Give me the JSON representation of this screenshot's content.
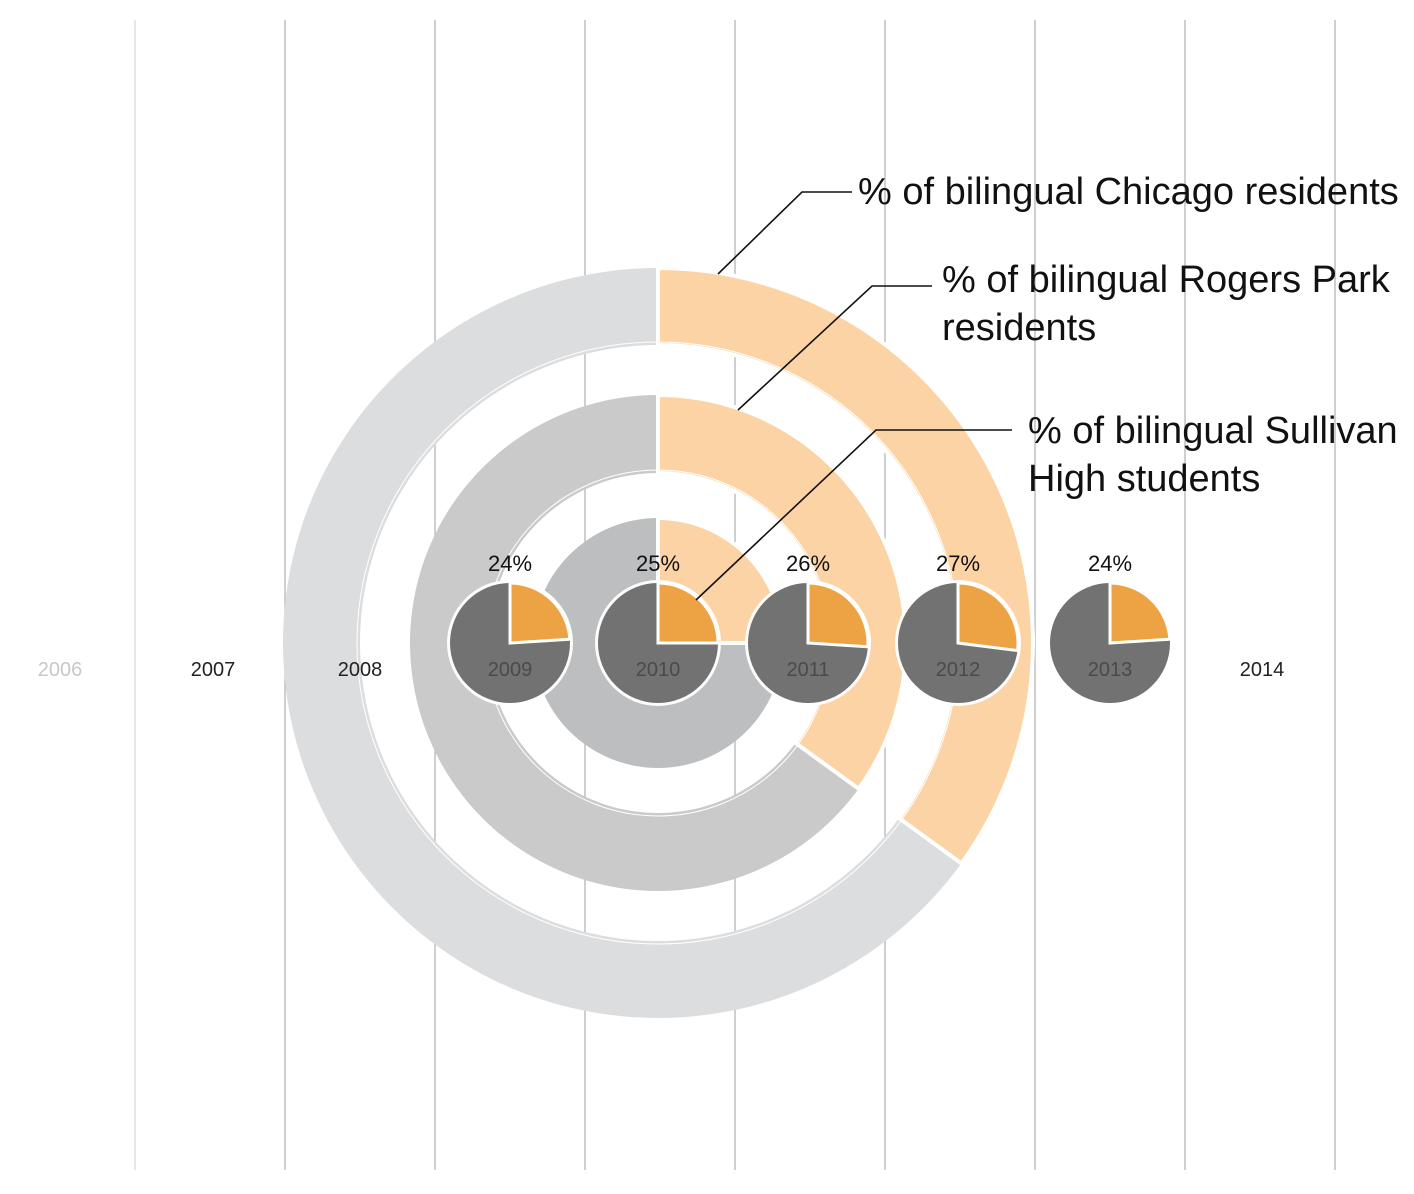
{
  "colors": {
    "orange": "#F3A541",
    "orange_light": "#FBD3A5",
    "ring_outer": "#DCDDDF",
    "ring_middle": "#CACACB",
    "ring_inner": "#BDBEBF",
    "pie_dark": "#666667",
    "axis": "#222222",
    "gridline": "#B5B5B5"
  },
  "chart_data": [
    {
      "type": "pie",
      "description_role": "concentric rings",
      "series": [
        {
          "name": "% of bilingual Chicago residents",
          "label_lines": [
            "% of bilingual Chicago residents"
          ],
          "value": 0.35
        },
        {
          "name": "% of bilingual Rogers Park residents",
          "label_lines": [
            "% of bilingual Rogers Park",
            "residents"
          ],
          "value": 0.35
        },
        {
          "name": "% of bilingual Sullivan High students",
          "label_lines": [
            "% of bilingual Sullivan",
            "High students"
          ],
          "value": 0.25
        }
      ]
    },
    {
      "type": "pie",
      "description_role": "timeline pies",
      "x": [
        "2006",
        "2007",
        "2008",
        "2009",
        "2010",
        "2011",
        "2012",
        "2013",
        "2014"
      ],
      "points": [
        {
          "year": "2009",
          "value": 24,
          "label": "24%"
        },
        {
          "year": "2010",
          "value": 25,
          "label": "25%"
        },
        {
          "year": "2011",
          "value": 26,
          "label": "26%"
        },
        {
          "year": "2012",
          "value": 27,
          "label": "27%"
        },
        {
          "year": "2013",
          "value": 24,
          "label": "24%"
        }
      ]
    }
  ]
}
